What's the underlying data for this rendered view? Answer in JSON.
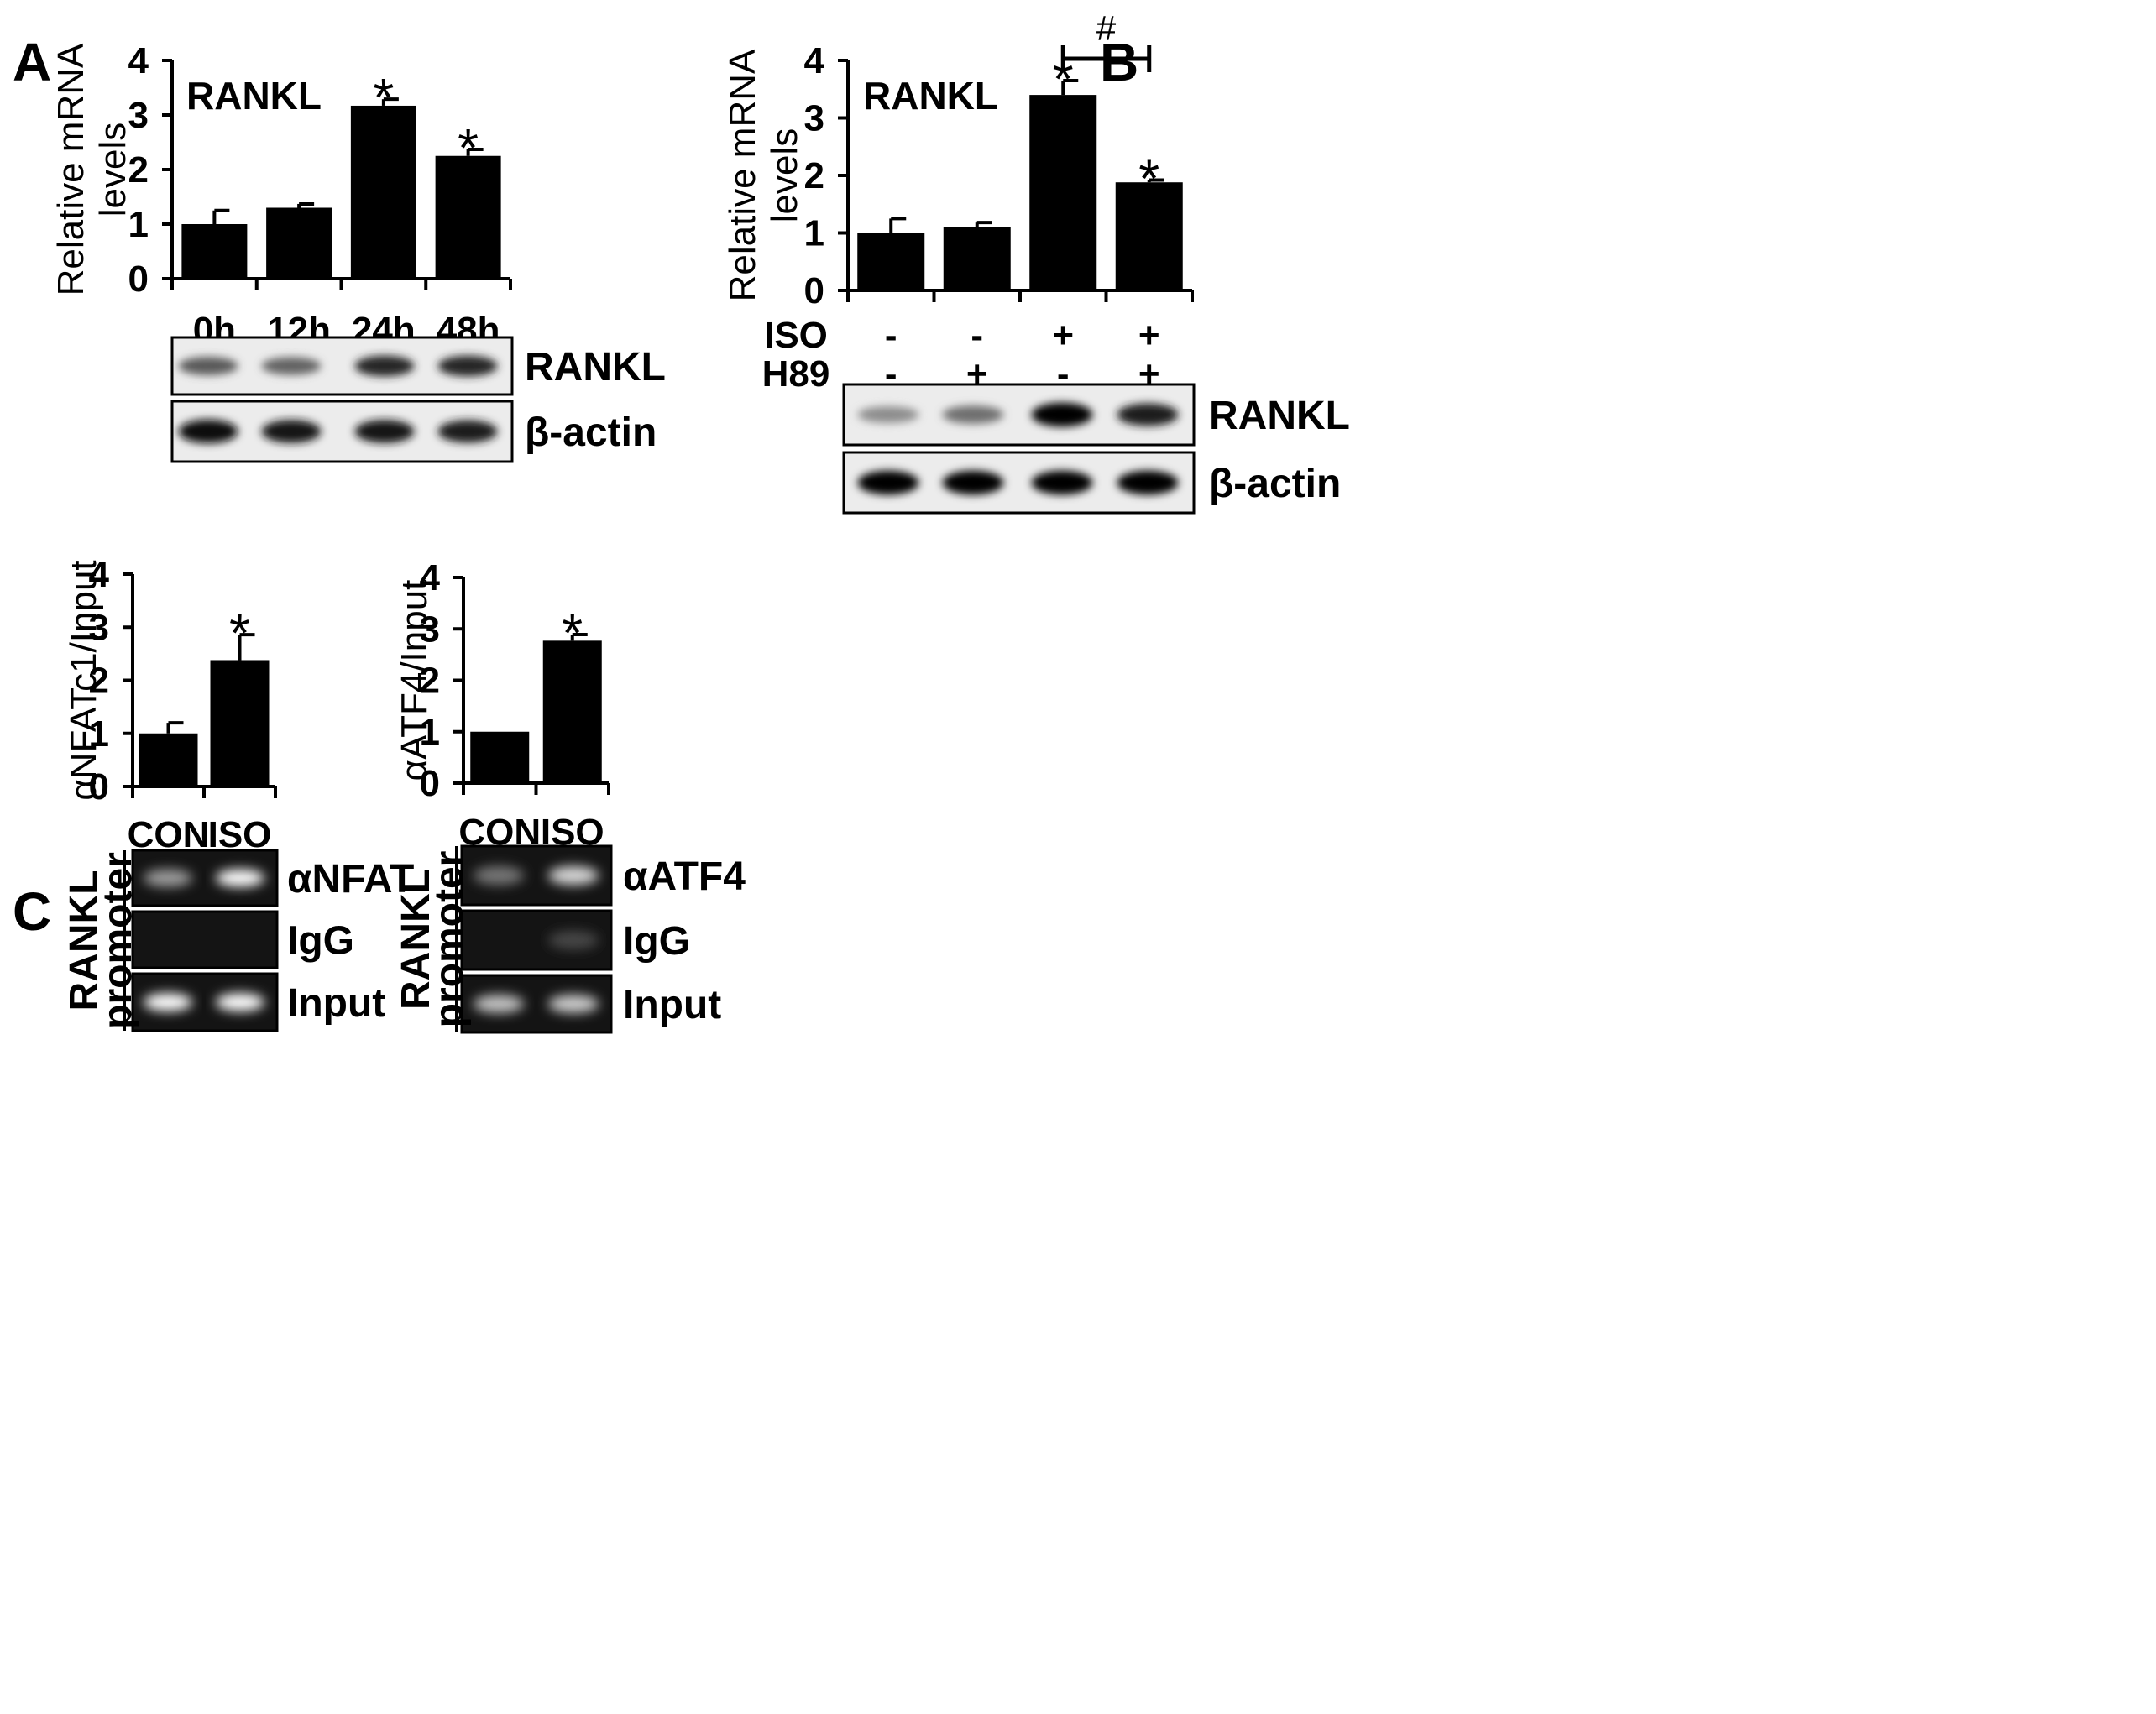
{
  "chart_data": [
    {
      "panel": "A",
      "type": "bar",
      "title": "RANKL",
      "ylabel": "Relative mRNA levels",
      "ylabel_lines": [
        "Relative mRNA",
        "levels"
      ],
      "ylim": [
        0,
        4
      ],
      "yticks": [
        "0",
        "1",
        "2",
        "3",
        "4"
      ],
      "categories": [
        "0h",
        "12h",
        "24h",
        "48h"
      ],
      "values": [
        1.0,
        1.3,
        3.17,
        2.25
      ],
      "errors": [
        0.25,
        0.07,
        0.12,
        0.12
      ],
      "annotations": [
        "",
        "",
        "*",
        "*"
      ],
      "color": "#000000",
      "blot": {
        "rows": [
          {
            "label": "RANKL",
            "intensity": [
              0.55,
              0.5,
              0.8,
              0.8
            ],
            "type": "western"
          },
          {
            "label": "β-actin",
            "intensity": [
              0.95,
              0.9,
              0.9,
              0.85
            ],
            "type": "western"
          }
        ]
      }
    },
    {
      "panel": "B",
      "type": "bar",
      "title": "RANKL",
      "ylabel": "Relative mRNA levels",
      "ylabel_lines": [
        "Relative mRNA",
        "levels"
      ],
      "ylim": [
        0,
        4
      ],
      "yticks": [
        "0",
        "1",
        "2",
        "3",
        "4"
      ],
      "values": [
        1.0,
        1.1,
        3.4,
        1.88
      ],
      "errors": [
        0.25,
        0.08,
        0.25,
        0.04
      ],
      "annotations": [
        "",
        "",
        "*",
        "*"
      ],
      "bracket": {
        "from": 2,
        "to": 3,
        "label": "#"
      },
      "conditions": [
        {
          "label": "ISO",
          "values": [
            "-",
            "-",
            "+",
            "+"
          ]
        },
        {
          "label": "H89",
          "values": [
            "-",
            "+",
            "-",
            "+"
          ]
        }
      ],
      "color": "#000000",
      "blot": {
        "rows": [
          {
            "label": "RANKL",
            "intensity": [
              0.3,
              0.45,
              1.0,
              0.85
            ],
            "type": "western"
          },
          {
            "label": "β-actin",
            "intensity": [
              1.0,
              1.0,
              1.0,
              1.0
            ],
            "type": "western"
          }
        ]
      }
    },
    {
      "panel": "C",
      "type": "bar",
      "title": "",
      "ylabel": "αNFATc1/Input",
      "ylabel_lines": [
        "αNFATc1/Input"
      ],
      "ylim": [
        0,
        4
      ],
      "yticks": [
        "0",
        "1",
        "2",
        "3",
        "4"
      ],
      "categories": [
        "CON",
        "ISO"
      ],
      "values": [
        1.0,
        2.38
      ],
      "errors": [
        0.2,
        0.48
      ],
      "annotations": [
        "",
        "*"
      ],
      "color": "#000000",
      "blot": {
        "side_label_lines": [
          "RANKL",
          "promoter"
        ],
        "rows": [
          {
            "label": "αNFAT",
            "intensity": [
              0.5,
              1.0
            ],
            "type": "gel"
          },
          {
            "label": "IgG",
            "intensity": [
              0.0,
              0.0
            ],
            "type": "gel"
          },
          {
            "label": "Input",
            "intensity": [
              1.0,
              1.0
            ],
            "type": "gel"
          }
        ]
      }
    },
    {
      "panel": "C",
      "type": "bar",
      "title": "",
      "ylabel": "αATF4/Input",
      "ylabel_lines": [
        "αATF4/Input"
      ],
      "ylim": [
        0,
        4
      ],
      "yticks": [
        "0",
        "1",
        "2",
        "3",
        "4"
      ],
      "categories": [
        "CON",
        "ISO"
      ],
      "values": [
        1.0,
        2.77
      ],
      "errors": [
        0.0,
        0.12
      ],
      "annotations": [
        "",
        "*"
      ],
      "color": "#000000",
      "blot": {
        "side_label_lines": [
          "RANKL",
          "promoter"
        ],
        "rows": [
          {
            "label": "αATF4",
            "intensity": [
              0.3,
              0.8
            ],
            "type": "gel"
          },
          {
            "label": "IgG",
            "intensity": [
              0.0,
              0.05
            ],
            "type": "gel"
          },
          {
            "label": "Input",
            "intensity": [
              0.7,
              0.75
            ],
            "type": "gel"
          }
        ]
      }
    }
  ],
  "panel_letters": [
    "A",
    "B",
    "C"
  ]
}
